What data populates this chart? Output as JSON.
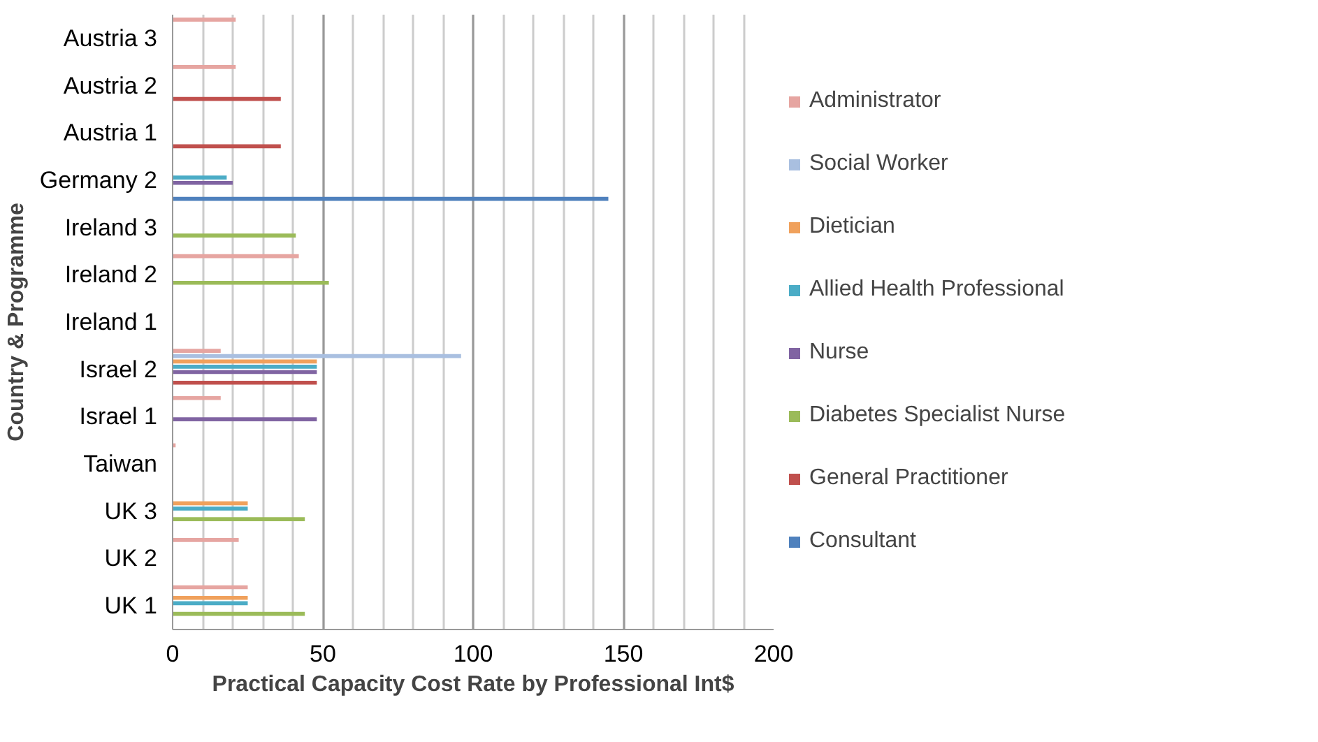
{
  "chart_data": {
    "type": "bar",
    "orientation": "horizontal",
    "xlabel": "Practical Capacity Cost Rate by Professional Int$",
    "ylabel": "Country & Programme",
    "categories": [
      "Austria 3",
      "Austria 2",
      "Austria 1",
      "Germany 2",
      "Ireland 3",
      "Ireland 2",
      "Ireland 1",
      "Israel 2",
      "Israel 1",
      "Taiwan",
      "UK 3",
      "UK 2",
      "UK 1"
    ],
    "series": [
      {
        "name": "Administrator",
        "color": "#e6a5a1",
        "values": [
          21,
          21,
          null,
          null,
          null,
          42,
          null,
          16,
          16,
          1,
          null,
          22,
          25
        ]
      },
      {
        "name": "Social Worker",
        "color": "#a9bfe0",
        "values": [
          null,
          null,
          null,
          null,
          null,
          null,
          null,
          96,
          null,
          null,
          null,
          null,
          null
        ]
      },
      {
        "name": "Dietician",
        "color": "#f0a15c",
        "values": [
          null,
          null,
          null,
          null,
          null,
          null,
          null,
          48,
          null,
          null,
          25,
          null,
          25
        ]
      },
      {
        "name": "Allied Health Professional",
        "color": "#4bacc6",
        "values": [
          null,
          null,
          null,
          18,
          null,
          null,
          null,
          48,
          null,
          null,
          25,
          null,
          25
        ]
      },
      {
        "name": "Nurse",
        "color": "#8064a2",
        "values": [
          null,
          null,
          null,
          20,
          null,
          null,
          null,
          48,
          48,
          null,
          null,
          null,
          null
        ]
      },
      {
        "name": "Diabetes Specialist Nurse",
        "color": "#9bbb59",
        "values": [
          null,
          null,
          null,
          null,
          41,
          52,
          null,
          null,
          null,
          null,
          44,
          null,
          44
        ]
      },
      {
        "name": "General Practitioner",
        "color": "#c0504d",
        "values": [
          null,
          36,
          36,
          null,
          null,
          null,
          null,
          48,
          null,
          null,
          null,
          null,
          null
        ]
      },
      {
        "name": "Consultant",
        "color": "#4f81bd",
        "values": [
          null,
          null,
          null,
          145,
          null,
          null,
          null,
          null,
          null,
          null,
          null,
          null,
          null
        ]
      }
    ],
    "xlim": [
      0,
      200
    ],
    "xticks": [
      0,
      {
        "value": 10,
        "label": null
      },
      {
        "value": 20,
        "label": null
      },
      {
        "value": 30,
        "label": null
      },
      {
        "value": 40,
        "label": null
      },
      50,
      {
        "value": 60,
        "label": null
      },
      {
        "value": 70,
        "label": null
      },
      {
        "value": 80,
        "label": null
      },
      {
        "value": 90,
        "label": null
      },
      100,
      {
        "value": 110,
        "label": null
      },
      {
        "value": 120,
        "label": null
      },
      {
        "value": 130,
        "label": null
      },
      {
        "value": 140,
        "label": null
      },
      150,
      {
        "value": 160,
        "label": null
      },
      {
        "value": 170,
        "label": null
      },
      {
        "value": 180,
        "label": null
      },
      {
        "value": 190,
        "label": null
      },
      200
    ],
    "grid": "x",
    "legend": "right"
  }
}
